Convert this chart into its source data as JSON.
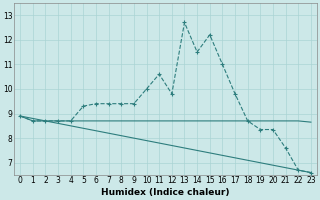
{
  "xlabel": "Humidex (Indice chaleur)",
  "ylabel": "",
  "bg_color": "#cce8e8",
  "line_color": "#2d7d7d",
  "x_ticks": [
    0,
    1,
    2,
    3,
    4,
    5,
    6,
    7,
    8,
    9,
    10,
    11,
    12,
    13,
    14,
    15,
    16,
    17,
    18,
    19,
    20,
    21,
    22,
    23
  ],
  "ylim": [
    6.5,
    13.5
  ],
  "xlim": [
    -0.5,
    23.5
  ],
  "yticks": [
    7,
    8,
    9,
    10,
    11,
    12,
    13
  ],
  "line1_x": [
    0,
    1,
    2,
    3,
    4,
    5,
    6,
    7,
    8,
    9,
    10,
    11,
    12,
    13,
    14,
    15,
    16,
    17,
    18,
    19,
    20,
    21,
    22,
    23
  ],
  "line1_y": [
    8.9,
    8.7,
    8.7,
    8.7,
    8.7,
    9.3,
    9.4,
    9.4,
    9.4,
    9.4,
    10.0,
    10.6,
    9.8,
    12.7,
    11.5,
    12.2,
    11.0,
    9.8,
    8.7,
    8.35,
    8.35,
    7.6,
    6.7,
    6.6
  ],
  "line2_x": [
    0,
    1,
    2,
    3,
    4,
    5,
    6,
    7,
    8,
    9,
    10,
    11,
    12,
    13,
    14,
    15,
    16,
    17,
    18,
    19,
    20,
    21,
    22,
    23
  ],
  "line2_y": [
    8.9,
    8.7,
    8.7,
    8.7,
    8.7,
    8.7,
    8.7,
    8.7,
    8.7,
    8.7,
    8.7,
    8.7,
    8.7,
    8.7,
    8.7,
    8.7,
    8.7,
    8.7,
    8.7,
    8.7,
    8.7,
    8.7,
    8.7,
    8.65
  ],
  "line3_x": [
    0,
    23
  ],
  "line3_y": [
    8.9,
    6.6
  ],
  "grid_color": "#aad4d4",
  "tick_label_fontsize": 5.5,
  "xlabel_fontsize": 6.5
}
